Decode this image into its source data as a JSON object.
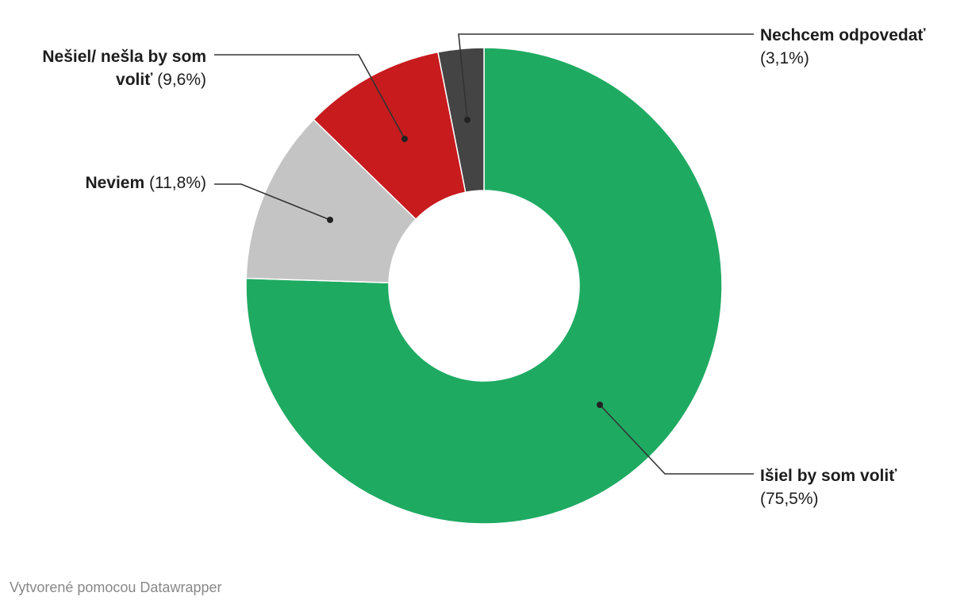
{
  "chart_data": {
    "type": "pie",
    "variant": "donut",
    "title": "",
    "slices": [
      {
        "label": "Išiel by som voliť",
        "value": 75.5,
        "display": "(75,5%)",
        "color": "#1faa62"
      },
      {
        "label": "Neviem",
        "value": 11.8,
        "display": "(11,8%)",
        "color": "#c4c4c4"
      },
      {
        "label": "Nešiel/ nešla by som voliť",
        "value": 9.6,
        "display": "(9,6%)",
        "color": "#c71b1e"
      },
      {
        "label": "Nechcem odpovedať",
        "value": 3.1,
        "display": "(3,1%)",
        "color": "#444444"
      }
    ],
    "legend": "none"
  },
  "labels": {
    "l0_name": "Išiel by som voliť",
    "l0_pct": "(75,5%)",
    "l1_name": "Neviem",
    "l1_pct": "(11,8%)",
    "l2_name_a": "Nešiel/ nešla by som",
    "l2_name_b": "voliť",
    "l2_pct": "(9,6%)",
    "l3_name": "Nechcem odpovedať",
    "l3_pct": "(3,1%)"
  },
  "credit": "Vytvorené pomocou Datawrapper"
}
